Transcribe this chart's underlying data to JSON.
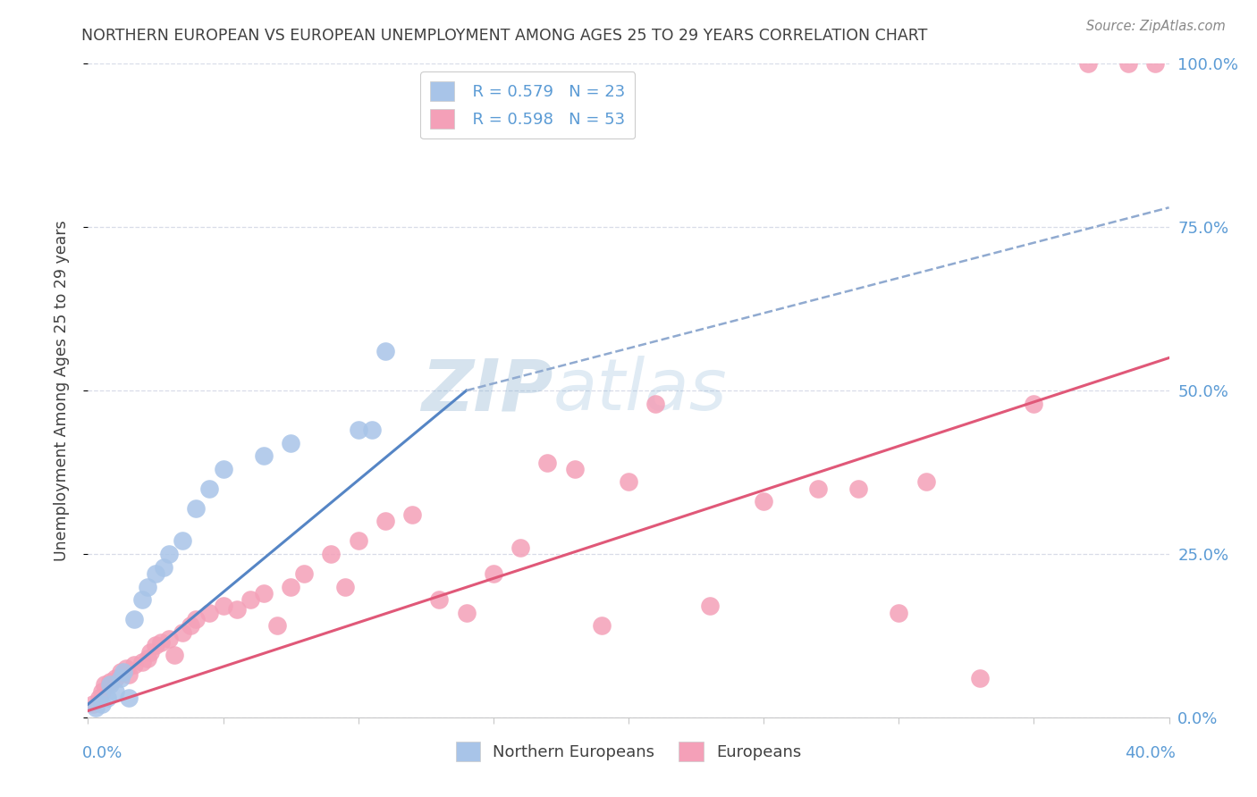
{
  "title": "NORTHERN EUROPEAN VS EUROPEAN UNEMPLOYMENT AMONG AGES 25 TO 29 YEARS CORRELATION CHART",
  "source": "Source: ZipAtlas.com",
  "ylabel": "Unemployment Among Ages 25 to 29 years",
  "legend_ne_r": "R = 0.579",
  "legend_ne_n": "N = 23",
  "legend_eu_r": "R = 0.598",
  "legend_eu_n": "N = 53",
  "legend_ne_label": "Northern Europeans",
  "legend_eu_label": "Europeans",
  "ne_color": "#a8c4e8",
  "ne_line_color": "#5585c5",
  "ne_dash_color": "#90aad0",
  "eu_color": "#f4a0b8",
  "eu_line_color": "#e05878",
  "watermark": "ZIPatlas",
  "background_color": "#ffffff",
  "grid_color": "#d8dce8",
  "title_color": "#404040",
  "label_color": "#5b9bd5",
  "ne_scatter_x": [
    0.3,
    0.5,
    0.7,
    0.8,
    1.0,
    1.2,
    1.3,
    1.5,
    1.7,
    2.0,
    2.2,
    2.5,
    2.8,
    3.0,
    3.5,
    4.0,
    4.5,
    5.0,
    6.5,
    7.5,
    10.0,
    10.5,
    11.0
  ],
  "ne_scatter_y": [
    1.5,
    2.0,
    3.0,
    5.0,
    4.0,
    6.0,
    7.0,
    3.0,
    15.0,
    18.0,
    20.0,
    22.0,
    23.0,
    25.0,
    27.0,
    32.0,
    35.0,
    38.0,
    40.0,
    42.0,
    44.0,
    44.0,
    56.0
  ],
  "eu_scatter_x": [
    0.2,
    0.4,
    0.5,
    0.6,
    0.8,
    1.0,
    1.2,
    1.4,
    1.5,
    1.7,
    2.0,
    2.2,
    2.3,
    2.5,
    2.7,
    3.0,
    3.2,
    3.5,
    3.8,
    4.0,
    4.5,
    5.0,
    5.5,
    6.0,
    6.5,
    7.0,
    7.5,
    8.0,
    9.0,
    9.5,
    10.0,
    11.0,
    12.0,
    13.0,
    14.0,
    15.0,
    16.0,
    17.0,
    18.0,
    19.0,
    20.0,
    21.0,
    23.0,
    25.0,
    27.0,
    28.5,
    30.0,
    31.0,
    33.0,
    35.0,
    37.0,
    38.5,
    39.5
  ],
  "eu_scatter_y": [
    2.0,
    3.0,
    4.0,
    5.0,
    5.5,
    6.0,
    7.0,
    7.5,
    6.5,
    8.0,
    8.5,
    9.0,
    10.0,
    11.0,
    11.5,
    12.0,
    9.5,
    13.0,
    14.0,
    15.0,
    16.0,
    17.0,
    16.5,
    18.0,
    19.0,
    14.0,
    20.0,
    22.0,
    25.0,
    20.0,
    27.0,
    30.0,
    31.0,
    18.0,
    16.0,
    22.0,
    26.0,
    39.0,
    38.0,
    14.0,
    36.0,
    48.0,
    17.0,
    33.0,
    35.0,
    35.0,
    16.0,
    36.0,
    6.0,
    48.0,
    100.0,
    100.0,
    100.0
  ],
  "ne_line_x0": 0.0,
  "ne_line_y0": 2.0,
  "ne_line_x1": 14.0,
  "ne_line_y1": 50.0,
  "ne_dash_x0": 14.0,
  "ne_dash_y0": 50.0,
  "ne_dash_x1": 40.0,
  "ne_dash_y1": 78.0,
  "eu_line_x0": 0.0,
  "eu_line_y0": 1.0,
  "eu_line_x1": 40.0,
  "eu_line_y1": 55.0,
  "xmin": 0.0,
  "xmax": 40.0,
  "ymin": 0.0,
  "ymax": 100.0,
  "yticks": [
    0,
    25,
    50,
    75,
    100
  ],
  "ytick_labels": [
    "0.0%",
    "25.0%",
    "50.0%",
    "75.0%",
    "100.0%"
  ]
}
